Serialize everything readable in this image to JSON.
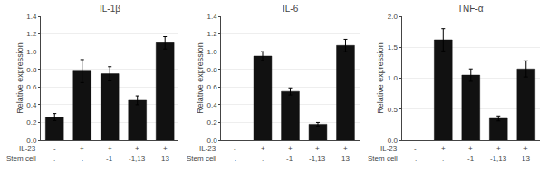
{
  "chart_data": [
    {
      "type": "bar",
      "title": "IL-1β",
      "categories": [
        "-\n.",
        "+\n.",
        "+\n-1",
        "+\n-1,13",
        "+\n13"
      ],
      "values": [
        0.26,
        0.78,
        0.75,
        0.45,
        1.1
      ],
      "errors": [
        0.04,
        0.13,
        0.08,
        0.05,
        0.07
      ],
      "color": "#111111",
      "ylabel": "Relative expression",
      "annotations": [
        "IL-23",
        "Stem cell"
      ],
      "ylim": [
        0,
        1.4
      ],
      "yticks": [
        {
          "value": 0,
          "label": "0.0"
        },
        0.2,
        0.4,
        0.6,
        0.8,
        {
          "value": 1.0,
          "label": "1.0"
        },
        1.2,
        1.4
      ],
      "grid": true
    },
    {
      "type": "bar",
      "title": "IL-6",
      "categories": [
        "-\n.",
        "+\n.",
        "+\n-1",
        "+\n-1,13",
        "+\n13"
      ],
      "values": [
        null,
        0.95,
        0.55,
        0.18,
        1.07
      ],
      "errors": [
        null,
        0.05,
        0.04,
        0.02,
        0.07
      ],
      "color": "#111111",
      "ylabel": "Relative expression",
      "annotations": [
        "IL-23",
        "Stem cell"
      ],
      "ylim": [
        0,
        1.4
      ],
      "yticks": [
        {
          "value": 0,
          "label": "0.0"
        },
        0.2,
        0.4,
        0.6,
        0.8,
        {
          "value": 1.0,
          "label": "1.0"
        },
        1.2,
        1.4
      ],
      "grid": true
    },
    {
      "type": "bar",
      "title": "TNF-α",
      "categories": [
        "-\n.",
        "+\n.",
        "+\n-1",
        "+\n-1,13",
        "+\n13"
      ],
      "values": [
        null,
        1.62,
        1.05,
        0.35,
        1.15
      ],
      "errors": [
        null,
        0.18,
        0.1,
        0.04,
        0.13
      ],
      "color": "#111111",
      "ylabel": "Relative expression",
      "annotations": [
        "IL-23",
        "Stem cell"
      ],
      "ylim": [
        0,
        2.0
      ],
      "yticks": [
        {
          "value": 0,
          "label": "0.0"
        },
        0.5,
        {
          "value": 1.0,
          "label": "1.0"
        },
        1.5,
        {
          "value": 2.0,
          "label": "2.0"
        }
      ],
      "grid": true
    }
  ]
}
